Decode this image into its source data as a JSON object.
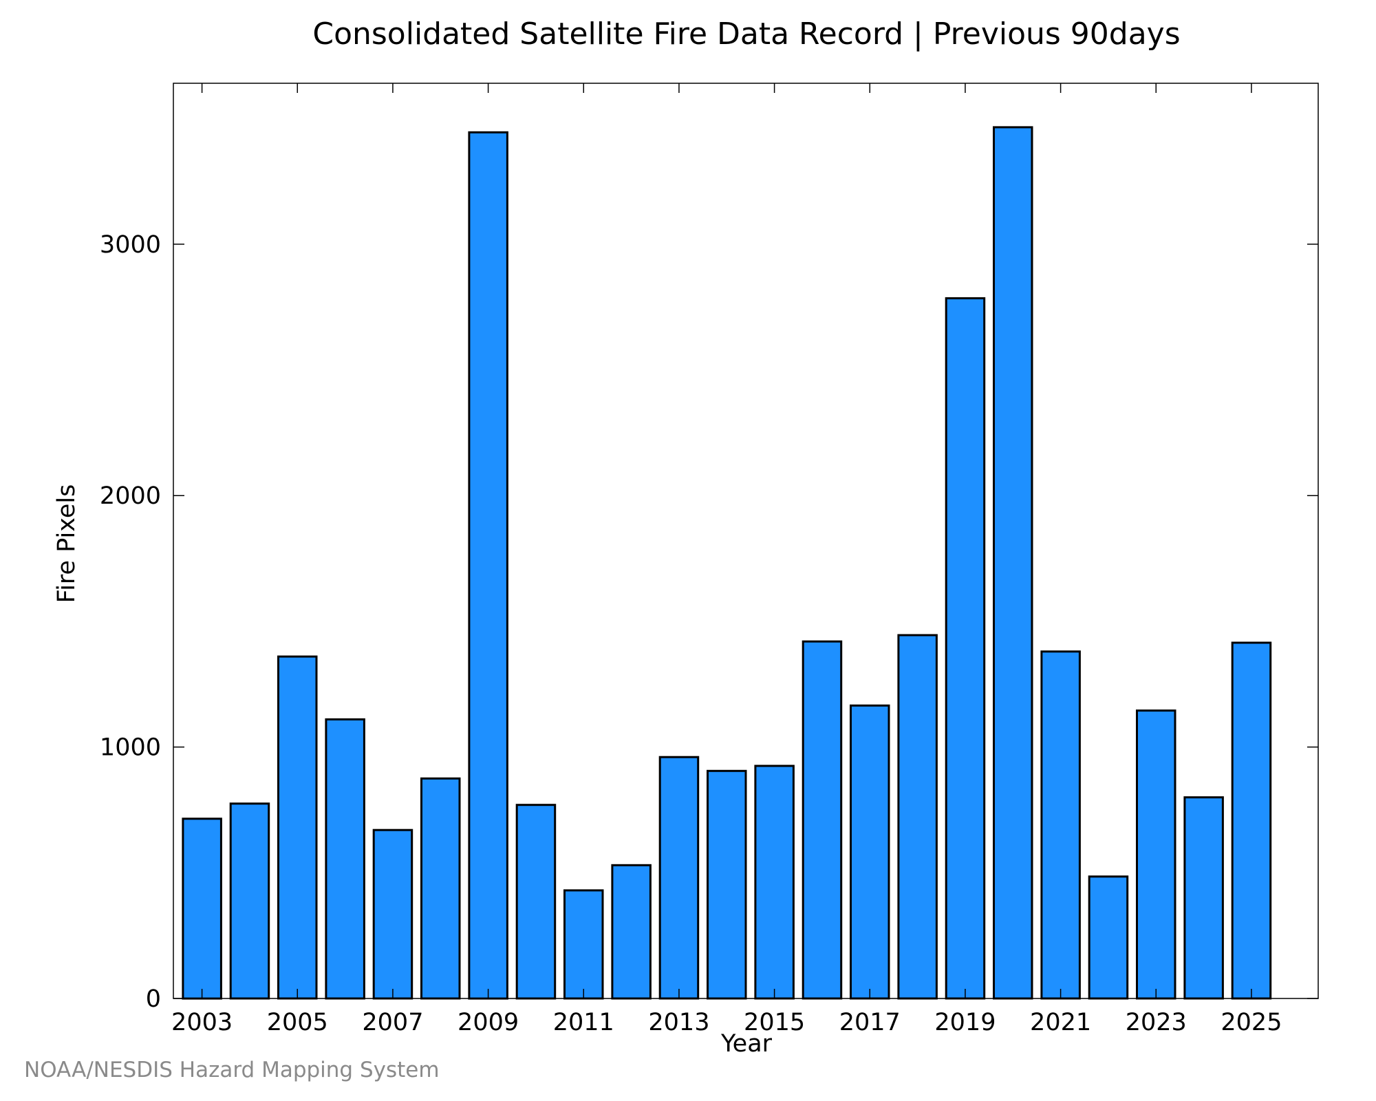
{
  "chart_data": {
    "type": "bar",
    "title": "Consolidated Satellite Fire Data Record | Previous 90days",
    "xlabel": "Year",
    "ylabel": "Fire Pixels",
    "categories": [
      "2003",
      "2004",
      "2005",
      "2006",
      "2007",
      "2008",
      "2009",
      "2010",
      "2011",
      "2012",
      "2013",
      "2014",
      "2015",
      "2016",
      "2017",
      "2018",
      "2019",
      "2020",
      "2021",
      "2022",
      "2023",
      "2024",
      "2025"
    ],
    "values": [
      715,
      775,
      1360,
      1110,
      670,
      875,
      3445,
      770,
      430,
      530,
      960,
      905,
      925,
      1420,
      1165,
      1445,
      2785,
      3465,
      1380,
      485,
      1145,
      800,
      1415
    ],
    "x_ticks": [
      "2003",
      "2005",
      "2007",
      "2009",
      "2011",
      "2013",
      "2015",
      "2017",
      "2019",
      "2021",
      "2023",
      "2025"
    ],
    "y_ticks": [
      0,
      1000,
      2000,
      3000
    ],
    "ylim": [
      0,
      3640
    ],
    "bar_color": "#1e90ff",
    "grid": false,
    "legend": "none"
  },
  "credit": "NOAA/NESDIS Hazard Mapping System"
}
